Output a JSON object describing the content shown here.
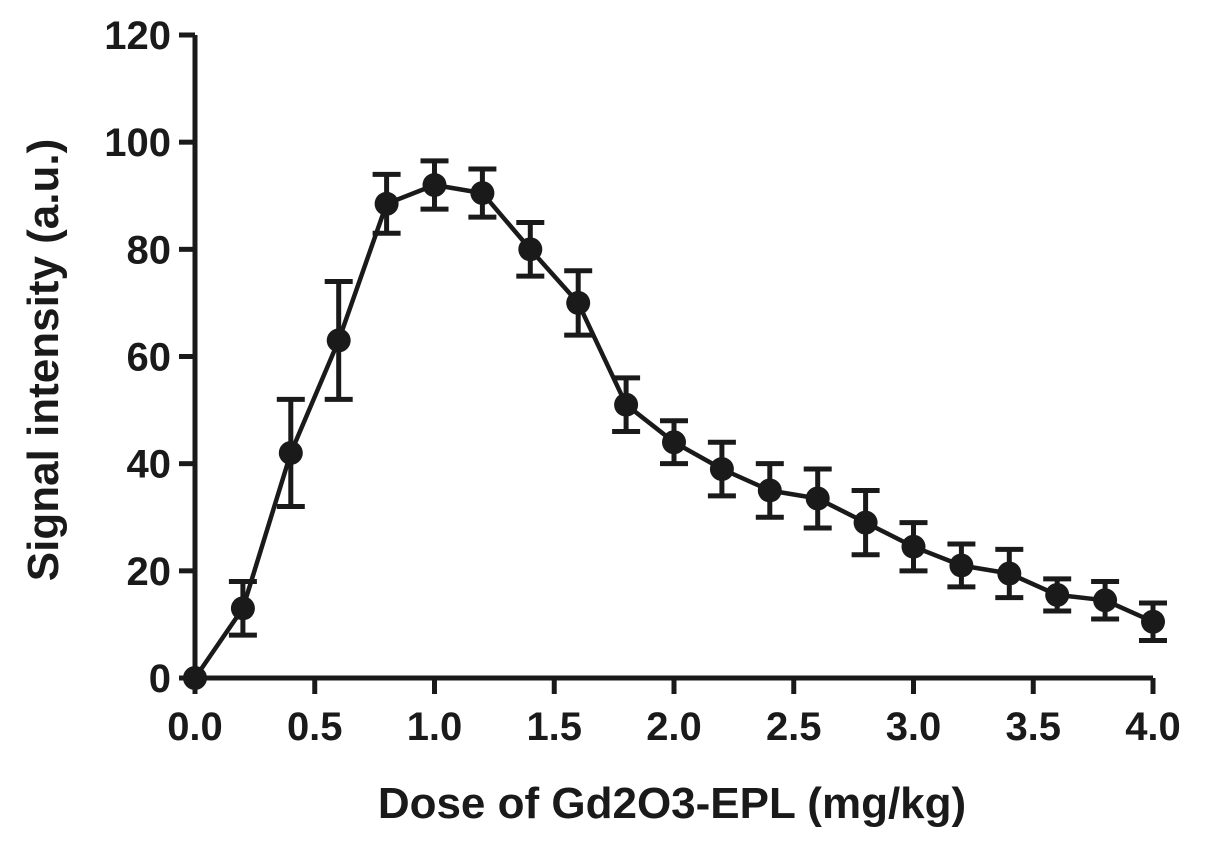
{
  "chart_data": {
    "type": "line",
    "title": "",
    "xlabel": "Dose of Gd2O3-EPL (mg/kg)",
    "ylabel": "Signal intensity (a.u.)",
    "xlim": [
      0,
      4.0
    ],
    "ylim": [
      0,
      120
    ],
    "x_ticks": [
      "0.0",
      "0.5",
      "1.0",
      "1.5",
      "2.0",
      "2.5",
      "3.0",
      "3.5",
      "4.0"
    ],
    "y_ticks": [
      "0",
      "20",
      "40",
      "60",
      "80",
      "100",
      "120"
    ],
    "grid": false,
    "legend": "none",
    "line_color": "#1a1a1a",
    "series": [
      {
        "x": [
          0.0,
          0.2,
          0.4,
          0.6,
          0.8,
          1.0,
          1.2,
          1.4,
          1.6,
          1.8,
          2.0,
          2.2,
          2.4,
          2.6,
          2.8,
          3.0,
          3.2,
          3.4,
          3.6,
          3.8,
          4.0
        ],
        "y": [
          0,
          13,
          42,
          63,
          88.5,
          92,
          90.5,
          80,
          70,
          51,
          44,
          39,
          35,
          33.5,
          29,
          24.5,
          21,
          19.5,
          15.5,
          14.5,
          10.5
        ],
        "error": [
          0,
          5,
          10,
          11,
          5.5,
          4.5,
          4.5,
          5,
          6,
          5,
          4,
          5,
          5,
          5.5,
          6,
          4.5,
          4,
          4.5,
          3,
          3.5,
          3.5
        ]
      }
    ]
  }
}
